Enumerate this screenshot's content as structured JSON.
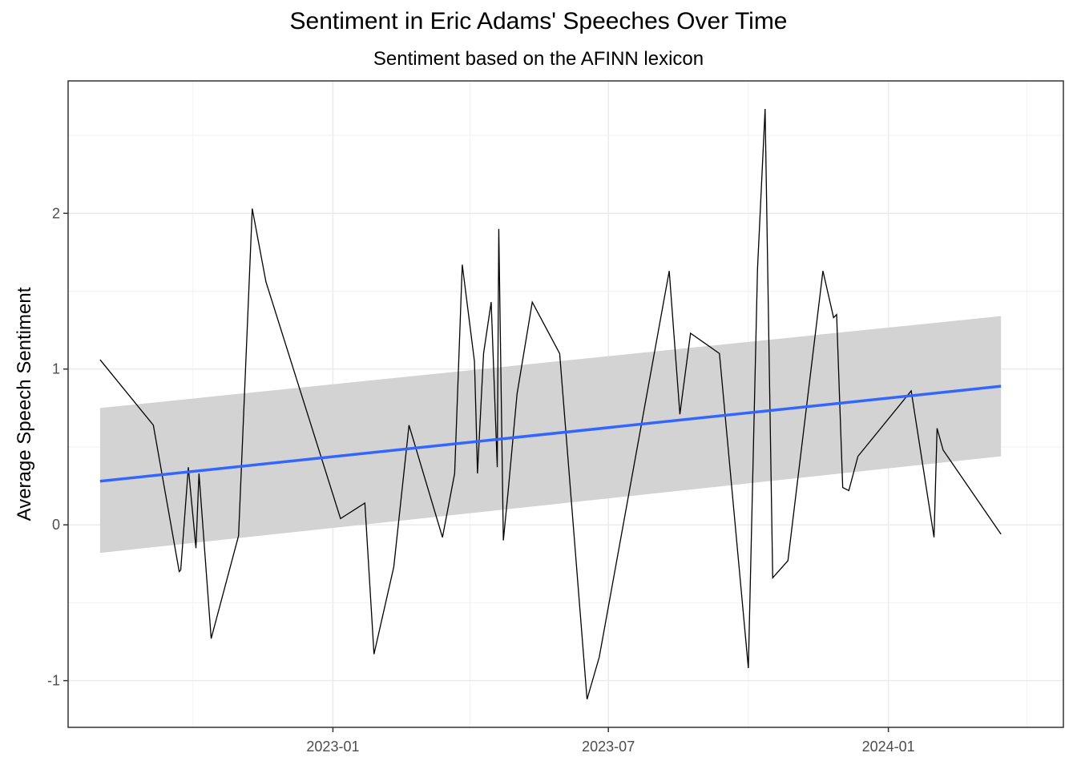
{
  "chart_data": {
    "type": "line",
    "title": "Sentiment in Eric Adams' Speeches Over Time",
    "subtitle": "Sentiment based on the AFINN lexicon",
    "xlabel": "",
    "ylabel": "Average Speech Sentiment",
    "x_type": "date",
    "xlim": [
      "2022-07-11",
      "2024-04-25"
    ],
    "ylim": [
      -1.3,
      2.85
    ],
    "x_ticks": [
      "2023-01",
      "2023-07",
      "2024-01"
    ],
    "x_tick_dates": [
      "2023-01-01",
      "2023-07-01",
      "2024-01-01"
    ],
    "x_minor_dates": [
      "2022-10-01",
      "2023-04-01",
      "2023-10-01",
      "2024-04-01"
    ],
    "y_ticks": [
      -1,
      0,
      1,
      2
    ],
    "y_minor": [
      -0.5,
      0.5,
      1.5,
      2.5
    ],
    "grid": true,
    "theme": "bw",
    "series": [
      {
        "type": "line",
        "color": "#000000",
        "x": [
          "2022-08-01",
          "2022-09-05",
          "2022-09-22",
          "2022-09-23",
          "2022-09-28",
          "2022-10-03",
          "2022-10-05",
          "2022-10-13",
          "2022-10-31",
          "2022-11-09",
          "2022-11-18",
          "2023-01-06",
          "2023-01-22",
          "2023-01-28",
          "2023-02-10",
          "2023-02-20",
          "2023-03-14",
          "2023-03-22",
          "2023-03-27",
          "2023-04-04",
          "2023-04-05",
          "2023-04-06",
          "2023-04-10",
          "2023-04-15",
          "2023-04-19",
          "2023-04-20",
          "2023-04-23",
          "2023-04-26",
          "2023-05-02",
          "2023-05-12",
          "2023-05-30",
          "2023-06-17",
          "2023-06-25",
          "2023-08-10",
          "2023-08-17",
          "2023-08-24",
          "2023-09-12",
          "2023-10-01",
          "2023-10-07",
          "2023-10-12",
          "2023-10-17",
          "2023-10-27",
          "2023-11-19",
          "2023-11-26",
          "2023-11-28",
          "2023-12-02",
          "2023-12-06",
          "2023-12-12",
          "2024-01-16",
          "2024-01-31",
          "2024-02-02",
          "2024-02-06",
          "2024-03-15"
        ],
        "y": [
          1.06,
          0.64,
          -0.3,
          -0.29,
          0.37,
          -0.15,
          0.33,
          -0.73,
          -0.07,
          2.03,
          1.56,
          0.04,
          0.14,
          -0.83,
          -0.27,
          0.64,
          -0.08,
          0.33,
          1.67,
          1.05,
          0.71,
          0.33,
          1.1,
          1.43,
          0.37,
          1.9,
          -0.1,
          0.2,
          0.84,
          1.43,
          1.1,
          -1.12,
          -0.85,
          1.63,
          0.71,
          1.23,
          1.1,
          -0.92,
          1.64,
          2.67,
          -0.34,
          -0.23,
          1.63,
          1.33,
          1.35,
          0.24,
          0.22,
          0.44,
          0.86,
          -0.08,
          0.62,
          0.48,
          -0.06
        ]
      },
      {
        "name": "trend",
        "type": "smooth",
        "method": "lm",
        "color": "#3366ff",
        "band_color": "#d3d3d3",
        "x": [
          "2022-08-01",
          "2024-03-15"
        ],
        "y": [
          0.28,
          0.89
        ],
        "ci_lower": [
          -0.18,
          0.44
        ],
        "ci_upper": [
          0.75,
          1.34
        ]
      }
    ]
  }
}
